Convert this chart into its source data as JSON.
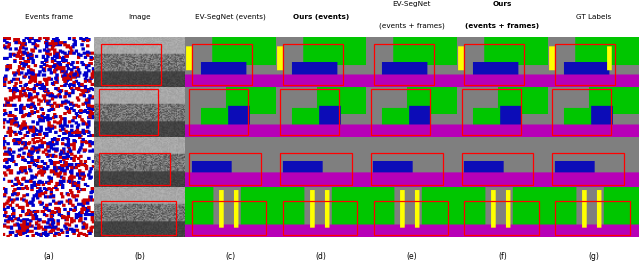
{
  "col_labels_line1": [
    "Events frame",
    "Image",
    "EV-SegNet (events)",
    "Ours (events)",
    "EV-SegNet",
    "Ours",
    "GT Labels"
  ],
  "col_labels_line2": [
    "",
    "",
    "",
    "",
    "(events + frames)",
    "(events + frames)",
    ""
  ],
  "col_labels_bold": [
    false,
    false,
    false,
    true,
    false,
    true,
    false
  ],
  "row_labels": [
    "(a)",
    "(b)",
    "(c)",
    "(d)",
    "(e)",
    "(f)",
    "(g)"
  ],
  "n_rows": 4,
  "n_cols": 7,
  "bg_color": "#ffffff",
  "red_box_color": "#cc0000"
}
